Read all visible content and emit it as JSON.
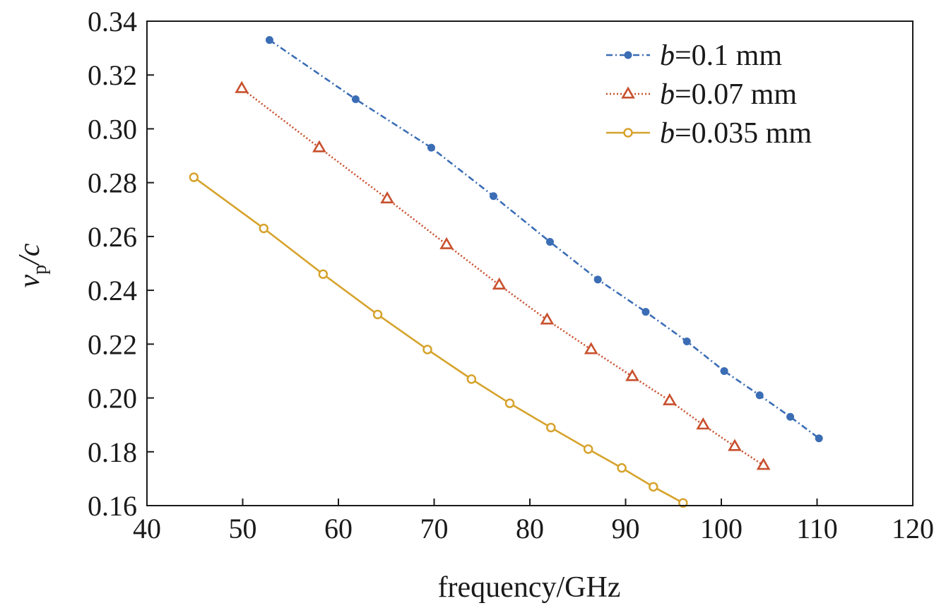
{
  "chart_data": {
    "type": "line",
    "xlabel": "frequency/GHz",
    "ylabel": {
      "main": "v",
      "sub": "p",
      "rest": "/c"
    },
    "xlim": [
      40,
      120
    ],
    "ylim": [
      0.16,
      0.34
    ],
    "xticks": [
      "40",
      "50",
      "60",
      "70",
      "80",
      "90",
      "100",
      "110",
      "120"
    ],
    "yticks": [
      "0.16",
      "0.18",
      "0.20",
      "0.22",
      "0.24",
      "0.26",
      "0.28",
      "0.30",
      "0.32",
      "0.34"
    ],
    "grid": false,
    "legend_position": "top-right",
    "series": [
      {
        "name": "b=0.1 mm",
        "label_var": "b",
        "label_rest": "=0.1 mm",
        "color": "#3b6db5",
        "marker": "dot",
        "line_style": "dash-dot",
        "x": [
          52.8,
          61.8,
          69.7,
          76.2,
          82.1,
          87.1,
          92.1,
          96.4,
          100.3,
          104.0,
          107.2,
          110.2
        ],
        "y": [
          0.333,
          0.311,
          0.293,
          0.275,
          0.258,
          0.244,
          0.232,
          0.221,
          0.21,
          0.201,
          0.193,
          0.185
        ]
      },
      {
        "name": "b=0.07 mm",
        "label_var": "b",
        "label_rest": "=0.07 mm",
        "color": "#c8502e",
        "marker": "triangle",
        "line_style": "dotted",
        "x": [
          49.9,
          58.0,
          65.1,
          71.3,
          76.8,
          81.8,
          86.4,
          90.7,
          94.6,
          98.1,
          101.4,
          104.4
        ],
        "y": [
          0.315,
          0.293,
          0.274,
          0.257,
          0.242,
          0.229,
          0.218,
          0.208,
          0.199,
          0.19,
          0.182,
          0.175
        ]
      },
      {
        "name": "b=0.035 mm",
        "label_var": "b",
        "label_rest": "=0.035 mm",
        "color": "#d6a32c",
        "marker": "circle",
        "line_style": "solid",
        "x": [
          44.9,
          52.2,
          58.4,
          64.1,
          69.3,
          73.9,
          77.9,
          82.2,
          86.1,
          89.6,
          92.9,
          96.0
        ],
        "y": [
          0.282,
          0.263,
          0.246,
          0.231,
          0.218,
          0.207,
          0.198,
          0.189,
          0.181,
          0.174,
          0.167,
          0.161
        ]
      }
    ]
  }
}
